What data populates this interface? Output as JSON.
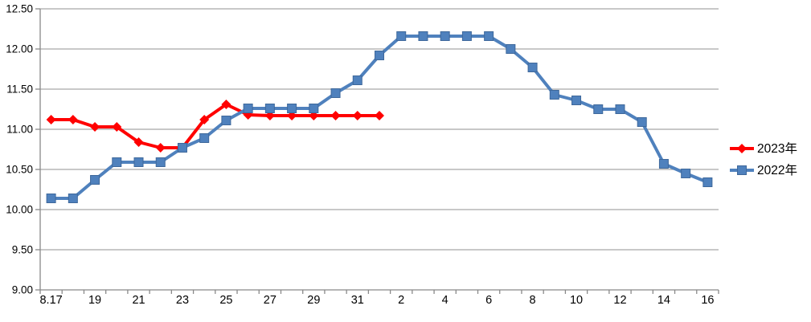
{
  "chart_data": {
    "type": "line",
    "title": "",
    "xlabel": "",
    "ylabel": "",
    "categories": [
      "8.17",
      "8.18",
      "8.19",
      "8.20",
      "8.21",
      "8.22",
      "8.23",
      "8.24",
      "8.25",
      "8.26",
      "8.27",
      "8.28",
      "8.29",
      "8.30",
      "8.31",
      "9.1",
      "9.2",
      "9.3",
      "9.4",
      "9.5",
      "9.6",
      "9.7",
      "9.8",
      "9.9",
      "9.10",
      "9.11",
      "9.12",
      "9.13",
      "9.14",
      "9.15",
      "9.16"
    ],
    "x_axis": {
      "tick_label_every": 2,
      "tick_labels": [
        "8.17",
        "19",
        "21",
        "23",
        "25",
        "27",
        "29",
        "31",
        "2",
        "4",
        "6",
        "8",
        "10",
        "12",
        "14",
        "16"
      ]
    },
    "y_axis": {
      "min": 9.0,
      "max": 12.5,
      "step": 0.5,
      "tick_labels": [
        "12.50",
        "12.00",
        "11.50",
        "11.00",
        "10.50",
        "10.00",
        "9.50",
        "9.00"
      ]
    },
    "series": [
      {
        "name": "2023年",
        "color": "#FF0000",
        "marker": "diamond",
        "values": [
          11.12,
          11.12,
          11.03,
          11.03,
          10.84,
          10.77,
          10.77,
          11.12,
          11.31,
          11.18,
          11.17,
          11.17,
          11.17,
          11.17,
          11.17,
          11.17
        ]
      },
      {
        "name": "2022年",
        "color": "#4F81BD",
        "marker": "square",
        "values": [
          10.14,
          10.14,
          10.37,
          10.59,
          10.59,
          10.59,
          10.77,
          10.89,
          11.11,
          11.26,
          11.26,
          11.26,
          11.26,
          11.45,
          11.61,
          11.92,
          12.16,
          12.16,
          12.16,
          12.16,
          12.16,
          12.0,
          11.77,
          11.43,
          11.36,
          11.25,
          11.25,
          11.09,
          10.57,
          10.45,
          10.34
        ]
      }
    ],
    "grid": true,
    "legend": {
      "position": "right",
      "labels": [
        "2023年",
        "2022年"
      ]
    },
    "colors": {
      "grid": "#A6A6A6",
      "axis": "#898989",
      "text": "#000000",
      "background": "#FFFFFF",
      "marker_stroke_2022": "#3E689B"
    }
  }
}
